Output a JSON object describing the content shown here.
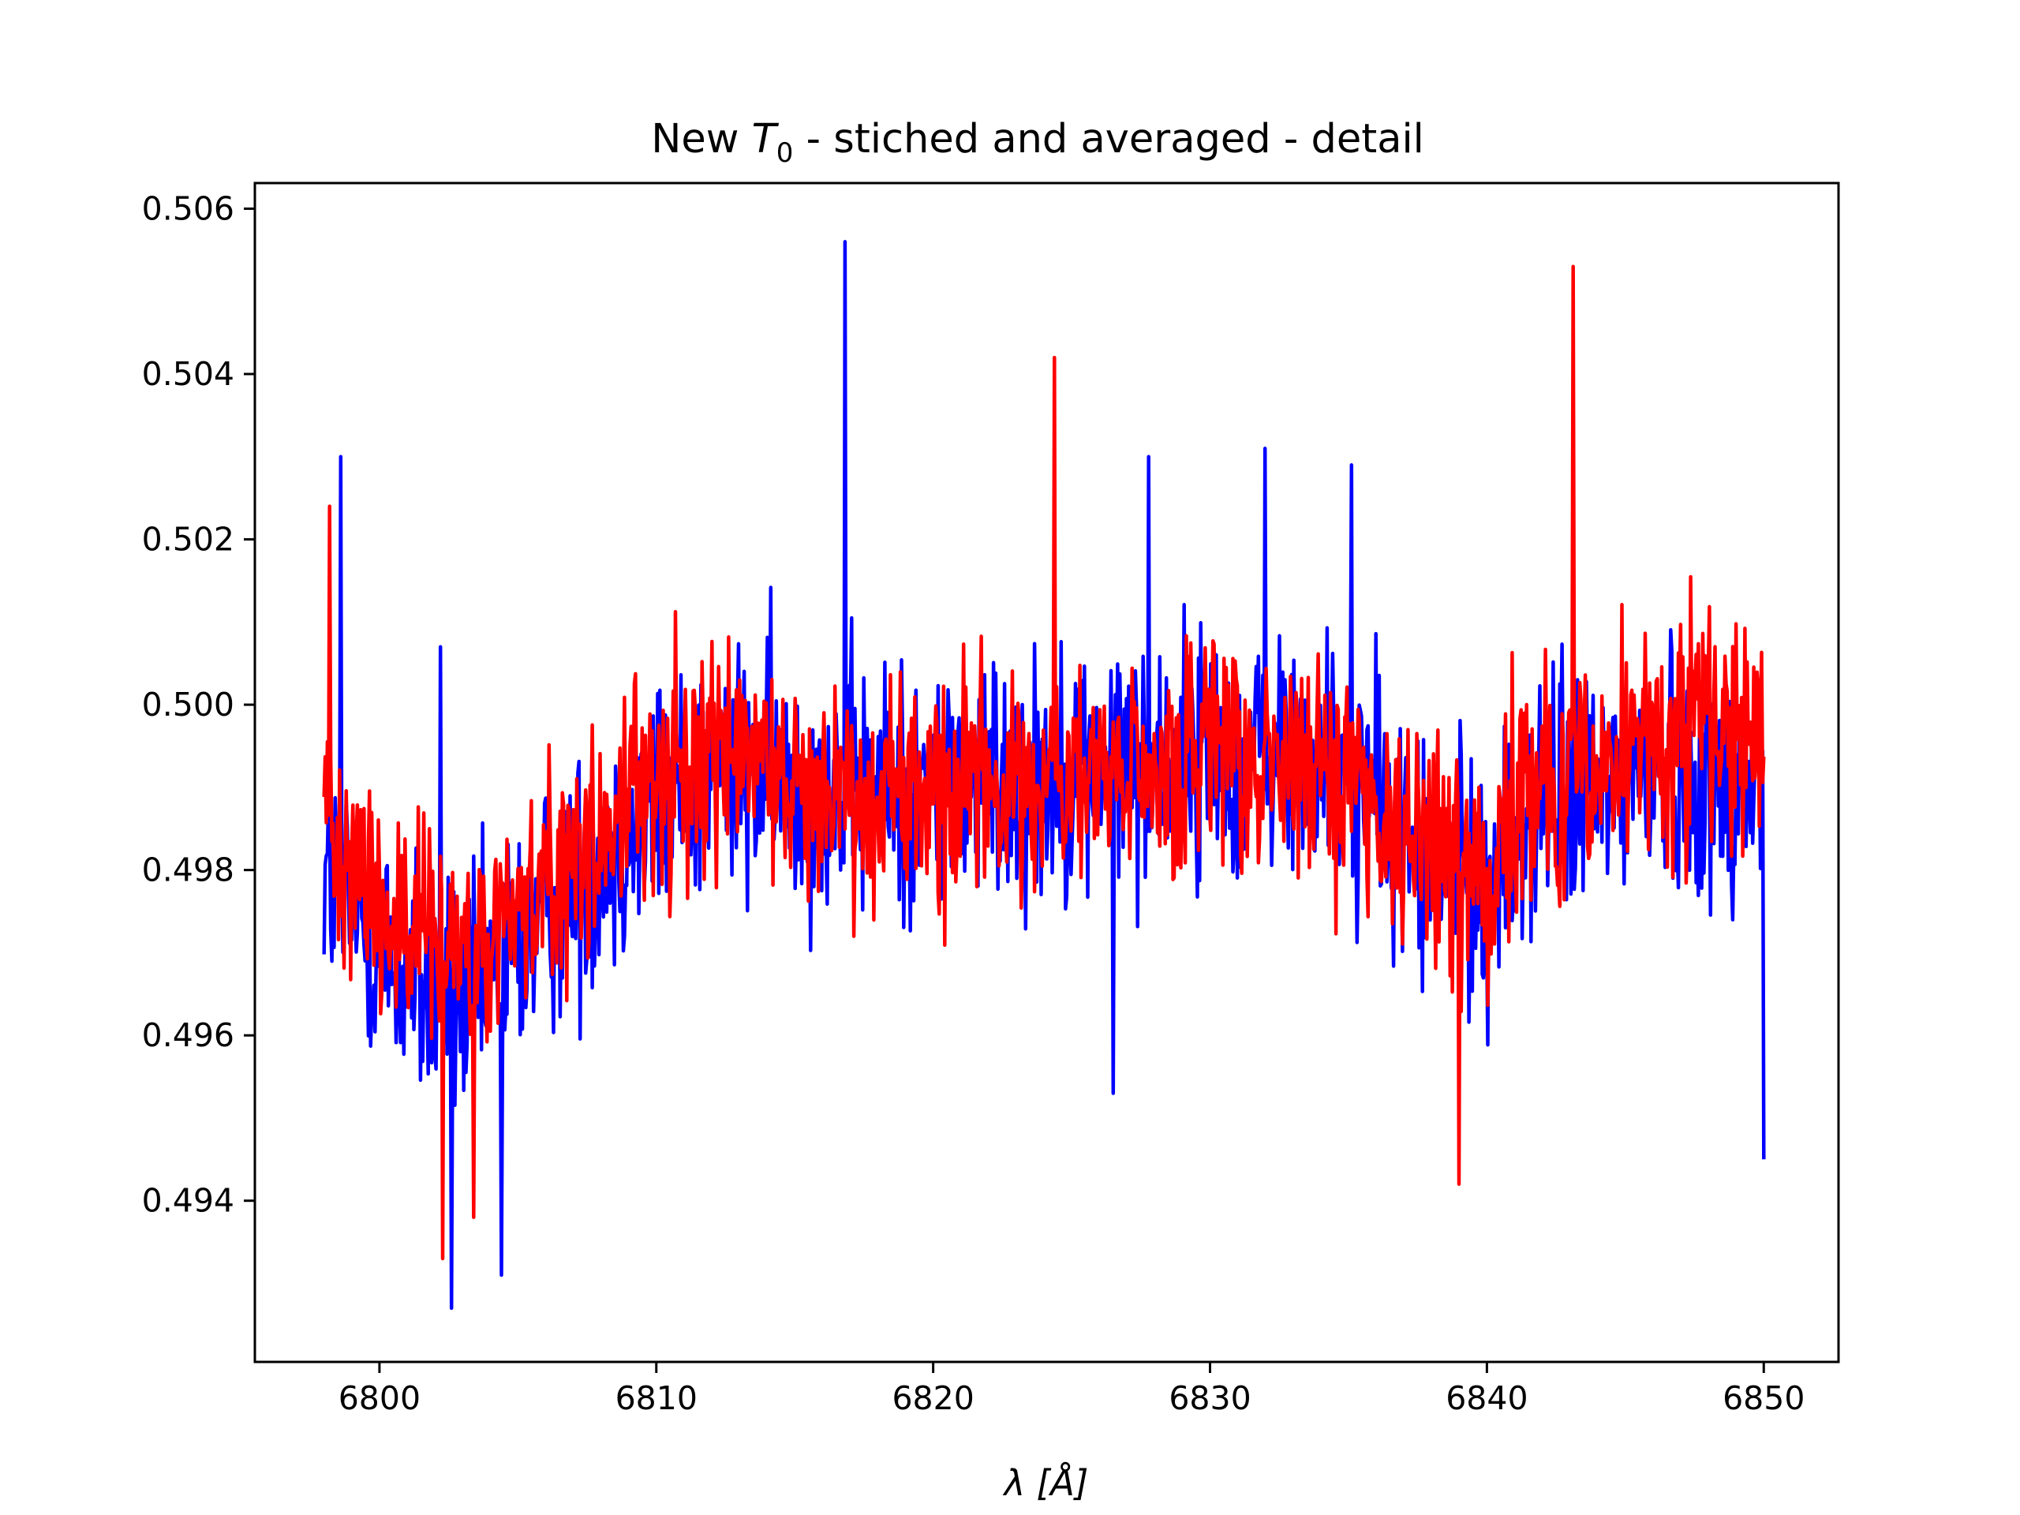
{
  "chart_data": {
    "type": "line",
    "title_prefix": "New ",
    "title_var": "T",
    "title_sub": "0",
    "title_suffix": " - stiched and averaged - detail",
    "xlabel_sym": "λ",
    "xlabel_unit": "[Å]",
    "ylabel": "",
    "xlim": [
      6795.5,
      6852.7
    ],
    "ylim": [
      0.49205,
      0.50631
    ],
    "xticks": [
      6800,
      6810,
      6820,
      6830,
      6840,
      6850
    ],
    "yticks": [
      0.494,
      0.496,
      0.498,
      0.5,
      0.502,
      0.504,
      0.506
    ],
    "xtick_labels": [
      "6800",
      "6810",
      "6820",
      "6830",
      "6840",
      "6850"
    ],
    "ytick_labels": [
      "0.494",
      "0.496",
      "0.498",
      "0.500",
      "0.502",
      "0.504",
      "0.506"
    ],
    "grid": false,
    "series": [
      {
        "color": "#0000ff",
        "x_start": 6798,
        "x_end": 6850,
        "n_points": 1300,
        "baseline": [
          [
            6798,
            0.498
          ],
          [
            6800,
            0.497
          ],
          [
            6803,
            0.4962
          ],
          [
            6806,
            0.4975
          ],
          [
            6809,
            0.4985
          ],
          [
            6812,
            0.4992
          ],
          [
            6816,
            0.499
          ],
          [
            6820,
            0.499
          ],
          [
            6825,
            0.4992
          ],
          [
            6830,
            0.4994
          ],
          [
            6835,
            0.4992
          ],
          [
            6838,
            0.498
          ],
          [
            6840,
            0.4978
          ],
          [
            6842,
            0.4988
          ],
          [
            6846,
            0.4992
          ],
          [
            6850,
            0.499
          ]
        ],
        "noise_amp": 0.0026,
        "spikes": [
          [
            6798.6,
            0.503
          ],
          [
            6802.2,
            0.5007
          ],
          [
            6802.6,
            0.4927
          ],
          [
            6804.4,
            0.4931
          ],
          [
            6816.8,
            0.5056
          ],
          [
            6826.5,
            0.4953
          ],
          [
            6827.8,
            0.503
          ],
          [
            6832.0,
            0.5031
          ],
          [
            6835.1,
            0.5029
          ],
          [
            6850.0,
            0.4945
          ]
        ]
      },
      {
        "color": "#ff0000",
        "x_start": 6798,
        "x_end": 6850,
        "n_points": 1300,
        "baseline": [
          [
            6798,
            0.499
          ],
          [
            6800,
            0.4975
          ],
          [
            6803,
            0.4968
          ],
          [
            6806,
            0.4978
          ],
          [
            6809,
            0.4988
          ],
          [
            6812,
            0.4995
          ],
          [
            6816,
            0.499
          ],
          [
            6820,
            0.499
          ],
          [
            6825,
            0.499
          ],
          [
            6830,
            0.4993
          ],
          [
            6835,
            0.4992
          ],
          [
            6838,
            0.4982
          ],
          [
            6840,
            0.498
          ],
          [
            6842,
            0.499
          ],
          [
            6846,
            0.4995
          ],
          [
            6850,
            0.4998
          ]
        ],
        "noise_amp": 0.0024,
        "spikes": [
          [
            6798.2,
            0.5024
          ],
          [
            6802.3,
            0.4933
          ],
          [
            6803.4,
            0.4938
          ],
          [
            6824.4,
            0.5042
          ],
          [
            6839.0,
            0.4942
          ],
          [
            6843.1,
            0.5053
          ]
        ]
      }
    ]
  }
}
